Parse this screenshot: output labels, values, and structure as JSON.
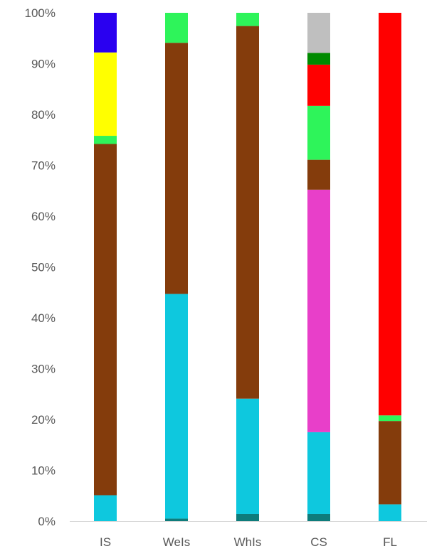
{
  "chart_data": {
    "type": "bar",
    "stacked": true,
    "percent_stacked": true,
    "title": "",
    "xlabel": "",
    "ylabel": "",
    "ylim": [
      0,
      100
    ],
    "y_ticks": [
      "0%",
      "10%",
      "20%",
      "30%",
      "40%",
      "50%",
      "60%",
      "70%",
      "80%",
      "90%",
      "100%"
    ],
    "grid": false,
    "legend": "none",
    "categories": [
      "IS",
      "WeIs",
      "WhIs",
      "CS",
      "FL"
    ],
    "series": [
      {
        "color": "#0e7c7b",
        "values": [
          0,
          0.5,
          1.4,
          1.4,
          0
        ]
      },
      {
        "color": "#0ec8de",
        "values": [
          5.1,
          44.2,
          22.7,
          16.1,
          3.3
        ]
      },
      {
        "color": "#e83fc9",
        "values": [
          0,
          0,
          0,
          47.7,
          0
        ]
      },
      {
        "color": "#843c0c",
        "values": [
          69.1,
          49.4,
          73.3,
          5.9,
          16.4
        ]
      },
      {
        "color": "#2ef45a",
        "values": [
          1.6,
          5.9,
          2.6,
          10.6,
          1.1
        ]
      },
      {
        "color": "#ff0000",
        "values": [
          0,
          0,
          0,
          8.1,
          79.2
        ]
      },
      {
        "color": "#008a00",
        "values": [
          0,
          0,
          0,
          2.3,
          0
        ]
      },
      {
        "color": "#ffff00",
        "values": [
          16.4,
          0,
          0,
          0,
          0
        ]
      },
      {
        "color": "#bfbfbf",
        "values": [
          0,
          0,
          0,
          7.9,
          0
        ]
      },
      {
        "color": "#2a00f0",
        "values": [
          7.8,
          0,
          0,
          0,
          0
        ]
      }
    ]
  }
}
